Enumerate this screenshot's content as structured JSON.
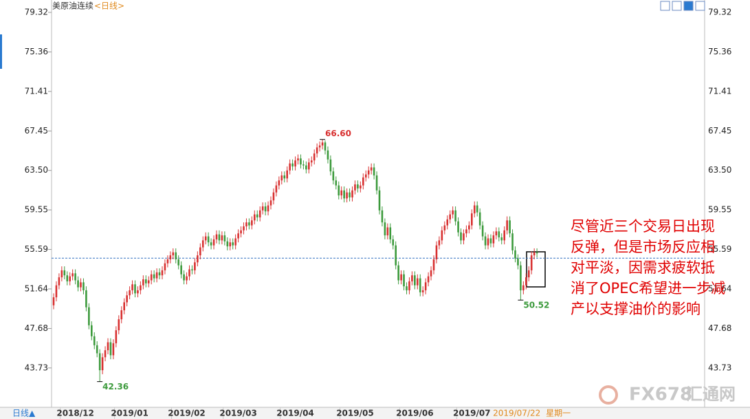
{
  "chart_data": {
    "type": "candlestick",
    "title": "美原油连续",
    "period": "<日线>",
    "footer_tab": "日线▲",
    "cursor_weekday": "星期一",
    "watermark_brand": "FX678",
    "watermark_site": "汇通网",
    "up_color": "#d83030",
    "down_color": "#3c9a3c",
    "price_line": 54.72,
    "price_line_color": "#3070c0",
    "ylim": [
      39.79,
      80.56
    ],
    "yticks": [
      79.32,
      75.36,
      71.41,
      67.45,
      {
        "value": 63.5,
        "label": "63.50"
      },
      59.55,
      55.59,
      51.64,
      47.68,
      43.73
    ],
    "annotations": [
      {
        "value": 66.6,
        "label": "66.60",
        "color": "#d83030"
      },
      {
        "value": 42.36,
        "label": "42.36",
        "color": "#3c9a3c"
      },
      {
        "value": 50.52,
        "label": "50.52",
        "color": "#3c9a3c"
      }
    ],
    "note_lines": [
      "尽管近三个交易日出现",
      "反弹，但是市场反应相",
      "对平淡，因需求疲软抵",
      "消了OPEC希望进一步减",
      "产以支撑油价的影响"
    ],
    "categories": [
      null,
      null,
      null,
      null,
      null,
      null,
      null,
      null,
      "2018/12",
      null,
      null,
      null,
      null,
      null,
      null,
      null,
      null,
      null,
      null,
      null,
      null,
      null,
      null,
      null,
      null,
      null,
      null,
      null,
      "2019/01",
      null,
      null,
      null,
      null,
      null,
      null,
      null,
      null,
      null,
      null,
      null,
      null,
      null,
      null,
      null,
      null,
      null,
      null,
      null,
      null,
      "2019/02",
      null,
      null,
      null,
      null,
      null,
      null,
      null,
      null,
      null,
      null,
      null,
      null,
      null,
      null,
      null,
      null,
      null,
      null,
      "2019/03",
      null,
      null,
      null,
      null,
      null,
      null,
      null,
      null,
      null,
      null,
      null,
      null,
      null,
      null,
      null,
      null,
      null,
      null,
      null,
      null,
      "2019/04",
      null,
      null,
      null,
      null,
      null,
      null,
      null,
      null,
      null,
      null,
      null,
      null,
      null,
      null,
      null,
      null,
      null,
      null,
      null,
      null,
      null,
      "2019/05",
      null,
      null,
      null,
      null,
      null,
      null,
      null,
      null,
      null,
      null,
      null,
      null,
      null,
      null,
      null,
      null,
      null,
      null,
      null,
      null,
      null,
      "2019/06",
      null,
      null,
      null,
      null,
      null,
      null,
      null,
      null,
      null,
      null,
      null,
      null,
      null,
      null,
      null,
      null,
      null,
      null,
      null,
      null,
      "2019/07",
      null,
      null,
      null,
      null,
      null,
      null,
      null,
      null,
      null,
      null,
      null,
      null,
      null,
      null,
      null,
      null,
      null,
      null,
      null,
      null,
      null,
      null,
      null,
      "2019/07/22"
    ],
    "open": [
      50.0,
      50.8,
      52.0,
      52.8,
      53.5,
      53.0,
      52.4,
      52.9,
      53.2,
      52.5,
      51.8,
      52.3,
      51.5,
      49.8,
      48.0,
      46.9,
      46.0,
      45.2,
      43.5,
      44.8,
      45.5,
      46.3,
      45.0,
      46.2,
      47.5,
      48.6,
      49.5,
      50.3,
      51.0,
      51.5,
      52.1,
      51.2,
      51.5,
      52.0,
      52.6,
      52.2,
      52.5,
      53.1,
      52.7,
      53.3,
      53.0,
      53.5,
      54.2,
      54.6,
      55.0,
      55.3,
      54.6,
      54.0,
      53.1,
      52.5,
      52.9,
      53.6,
      53.5,
      54.3,
      55.0,
      55.8,
      56.5,
      56.9,
      56.3,
      56.0,
      56.6,
      57.1,
      56.5,
      57.0,
      56.4,
      55.9,
      56.3,
      56.0,
      56.7,
      57.2,
      57.5,
      57.9,
      58.3,
      58.0,
      58.5,
      59.1,
      58.8,
      59.5,
      59.9,
      59.4,
      60.0,
      60.5,
      61.3,
      62.0,
      62.5,
      63.0,
      62.7,
      63.5,
      64.2,
      63.9,
      64.5,
      64.7,
      64.1,
      64.0,
      63.6,
      64.3,
      64.5,
      65.2,
      65.8,
      66.0,
      66.3,
      65.5,
      64.6,
      63.4,
      62.5,
      62.0,
      61.0,
      61.5,
      60.7,
      61.3,
      60.8,
      61.5,
      62.1,
      61.7,
      62.0,
      62.8,
      63.1,
      63.5,
      63.8,
      63.0,
      61.5,
      59.5,
      58.3,
      57.0,
      57.8,
      56.6,
      56.0,
      54.0,
      52.5,
      53.1,
      51.9,
      51.5,
      52.4,
      53.0,
      52.0,
      52.7,
      51.3,
      51.5,
      52.3,
      52.9,
      53.5,
      54.6,
      56.0,
      56.5,
      57.5,
      58.0,
      58.6,
      59.1,
      59.5,
      58.4,
      57.3,
      56.5,
      57.2,
      57.6,
      58.0,
      59.2,
      60.0,
      59.3,
      58.0,
      56.9,
      56.0,
      56.7,
      56.2,
      57.0,
      57.4,
      56.8,
      56.5,
      57.5,
      58.5,
      57.2,
      55.5,
      54.7,
      54.0,
      51.5,
      52.0,
      52.8,
      53.5,
      55.0,
      55.3
    ],
    "high": [
      51.2,
      52.4,
      53.2,
      53.9,
      53.9,
      53.4,
      53.3,
      53.6,
      53.6,
      52.9,
      52.7,
      52.7,
      51.9,
      50.2,
      48.4,
      47.3,
      46.4,
      45.6,
      45.2,
      45.9,
      46.7,
      46.7,
      46.6,
      47.9,
      49.0,
      49.9,
      50.7,
      51.4,
      51.9,
      52.5,
      52.5,
      51.9,
      52.4,
      53.0,
      53.0,
      52.9,
      53.5,
      53.5,
      53.7,
      53.7,
      53.9,
      54.6,
      55.0,
      55.4,
      55.7,
      55.7,
      55.0,
      54.4,
      53.5,
      53.3,
      54.0,
      54.0,
      54.7,
      55.4,
      56.2,
      56.9,
      57.3,
      57.3,
      56.7,
      57.0,
      57.5,
      57.5,
      57.4,
      57.4,
      56.8,
      56.7,
      56.7,
      57.1,
      57.6,
      57.9,
      58.3,
      58.7,
      58.7,
      58.9,
      59.5,
      59.5,
      59.9,
      60.3,
      60.3,
      60.4,
      60.9,
      61.7,
      62.4,
      62.9,
      63.4,
      63.4,
      63.9,
      64.6,
      64.6,
      64.9,
      65.1,
      65.1,
      64.5,
      64.4,
      64.7,
      64.9,
      65.6,
      66.2,
      66.4,
      66.6,
      66.5,
      65.9,
      65.0,
      63.8,
      62.9,
      62.4,
      61.9,
      61.9,
      61.7,
      61.7,
      61.9,
      62.5,
      62.5,
      62.4,
      63.2,
      63.5,
      63.9,
      64.2,
      64.2,
      63.4,
      61.9,
      59.9,
      58.7,
      58.2,
      58.2,
      57.0,
      56.4,
      54.4,
      53.5,
      53.5,
      52.3,
      52.8,
      53.4,
      53.4,
      53.1,
      53.1,
      51.9,
      52.7,
      53.3,
      53.9,
      55.0,
      56.4,
      56.9,
      57.9,
      58.4,
      59.0,
      59.5,
      59.9,
      59.9,
      58.8,
      57.7,
      57.6,
      58.0,
      58.4,
      59.6,
      60.4,
      60.4,
      59.7,
      58.4,
      57.3,
      57.1,
      57.1,
      57.4,
      57.8,
      57.8,
      57.2,
      57.9,
      58.9,
      58.9,
      57.6,
      55.9,
      55.1,
      54.4,
      52.4,
      53.2,
      53.9,
      55.4,
      55.7,
      55.7
    ],
    "low": [
      49.6,
      50.4,
      51.6,
      52.4,
      52.6,
      52.0,
      52.0,
      52.5,
      52.1,
      51.4,
      51.4,
      51.1,
      49.4,
      47.6,
      46.5,
      45.6,
      44.8,
      42.36,
      43.1,
      44.4,
      45.1,
      44.6,
      44.6,
      45.8,
      47.1,
      48.2,
      49.1,
      49.9,
      50.6,
      51.1,
      50.8,
      50.8,
      51.1,
      51.6,
      51.8,
      51.8,
      52.1,
      52.3,
      52.3,
      52.6,
      52.6,
      53.1,
      53.8,
      54.2,
      54.6,
      54.2,
      53.6,
      52.7,
      52.1,
      52.1,
      52.5,
      53.1,
      53.1,
      53.9,
      54.6,
      55.4,
      56.1,
      55.9,
      55.6,
      55.6,
      56.2,
      56.1,
      56.1,
      56.0,
      55.5,
      55.5,
      55.6,
      55.6,
      56.3,
      56.8,
      57.1,
      57.5,
      57.6,
      57.6,
      58.1,
      58.4,
      58.4,
      59.1,
      59.0,
      59.0,
      59.6,
      60.1,
      60.9,
      61.6,
      62.1,
      62.3,
      62.3,
      63.1,
      63.5,
      63.5,
      64.1,
      63.7,
      63.6,
      63.2,
      63.2,
      63.9,
      64.1,
      64.8,
      65.4,
      65.6,
      65.1,
      64.2,
      63.0,
      62.1,
      61.6,
      60.6,
      60.6,
      60.3,
      60.3,
      60.4,
      60.4,
      61.1,
      61.3,
      61.3,
      61.6,
      62.4,
      62.7,
      63.1,
      62.6,
      61.1,
      59.1,
      57.9,
      56.6,
      56.6,
      56.2,
      55.6,
      53.6,
      52.1,
      52.1,
      51.5,
      51.1,
      51.1,
      52.0,
      51.6,
      51.6,
      50.9,
      50.9,
      51.1,
      51.9,
      52.5,
      53.1,
      54.2,
      55.6,
      56.1,
      57.1,
      57.6,
      58.2,
      58.7,
      58.0,
      56.9,
      56.1,
      56.1,
      56.8,
      57.2,
      57.6,
      58.8,
      58.9,
      57.6,
      56.5,
      55.6,
      55.6,
      55.8,
      55.8,
      56.6,
      56.4,
      56.1,
      56.1,
      57.1,
      56.8,
      55.1,
      54.3,
      53.6,
      50.52,
      51.1,
      51.6,
      52.4,
      53.1,
      54.6,
      54.8
    ],
    "close": [
      50.8,
      52.0,
      52.8,
      53.5,
      53.0,
      52.4,
      52.9,
      53.2,
      52.5,
      51.8,
      52.3,
      51.5,
      49.8,
      48.0,
      46.9,
      46.0,
      45.2,
      43.5,
      44.8,
      45.5,
      46.3,
      45.0,
      46.2,
      47.5,
      48.6,
      49.5,
      50.3,
      51.0,
      51.5,
      52.1,
      51.2,
      51.5,
      52.0,
      52.6,
      52.2,
      52.5,
      53.1,
      52.7,
      53.3,
      53.0,
      53.5,
      54.2,
      54.6,
      55.0,
      55.3,
      54.6,
      54.0,
      53.1,
      52.5,
      52.9,
      53.6,
      53.5,
      54.3,
      55.0,
      55.8,
      56.5,
      56.9,
      56.3,
      56.0,
      56.6,
      57.1,
      56.5,
      57.0,
      56.4,
      55.9,
      56.3,
      56.0,
      56.7,
      57.2,
      57.5,
      57.9,
      58.3,
      58.0,
      58.5,
      59.1,
      58.8,
      59.5,
      59.9,
      59.4,
      60.0,
      60.5,
      61.3,
      62.0,
      62.5,
      63.0,
      62.7,
      63.5,
      64.2,
      63.9,
      64.5,
      64.7,
      64.1,
      64.0,
      63.6,
      64.3,
      64.5,
      65.2,
      65.8,
      66.0,
      66.3,
      65.5,
      64.6,
      63.4,
      62.5,
      62.0,
      61.0,
      61.5,
      60.7,
      61.3,
      60.8,
      61.5,
      62.1,
      61.7,
      62.0,
      62.8,
      63.1,
      63.5,
      63.8,
      63.0,
      61.5,
      59.5,
      58.3,
      57.0,
      57.8,
      56.6,
      56.0,
      54.0,
      52.5,
      53.1,
      51.9,
      51.5,
      52.4,
      53.0,
      52.0,
      52.7,
      51.3,
      51.5,
      52.3,
      52.9,
      53.5,
      54.6,
      56.0,
      56.5,
      57.5,
      58.0,
      58.6,
      59.1,
      59.5,
      58.4,
      57.3,
      56.5,
      57.2,
      57.6,
      58.0,
      59.2,
      60.0,
      59.3,
      58.0,
      56.9,
      56.0,
      56.7,
      56.2,
      57.0,
      57.4,
      56.8,
      56.5,
      57.5,
      58.5,
      57.2,
      55.5,
      54.7,
      54.0,
      51.5,
      52.0,
      52.8,
      53.5,
      55.0,
      55.3,
      55.2
    ]
  }
}
